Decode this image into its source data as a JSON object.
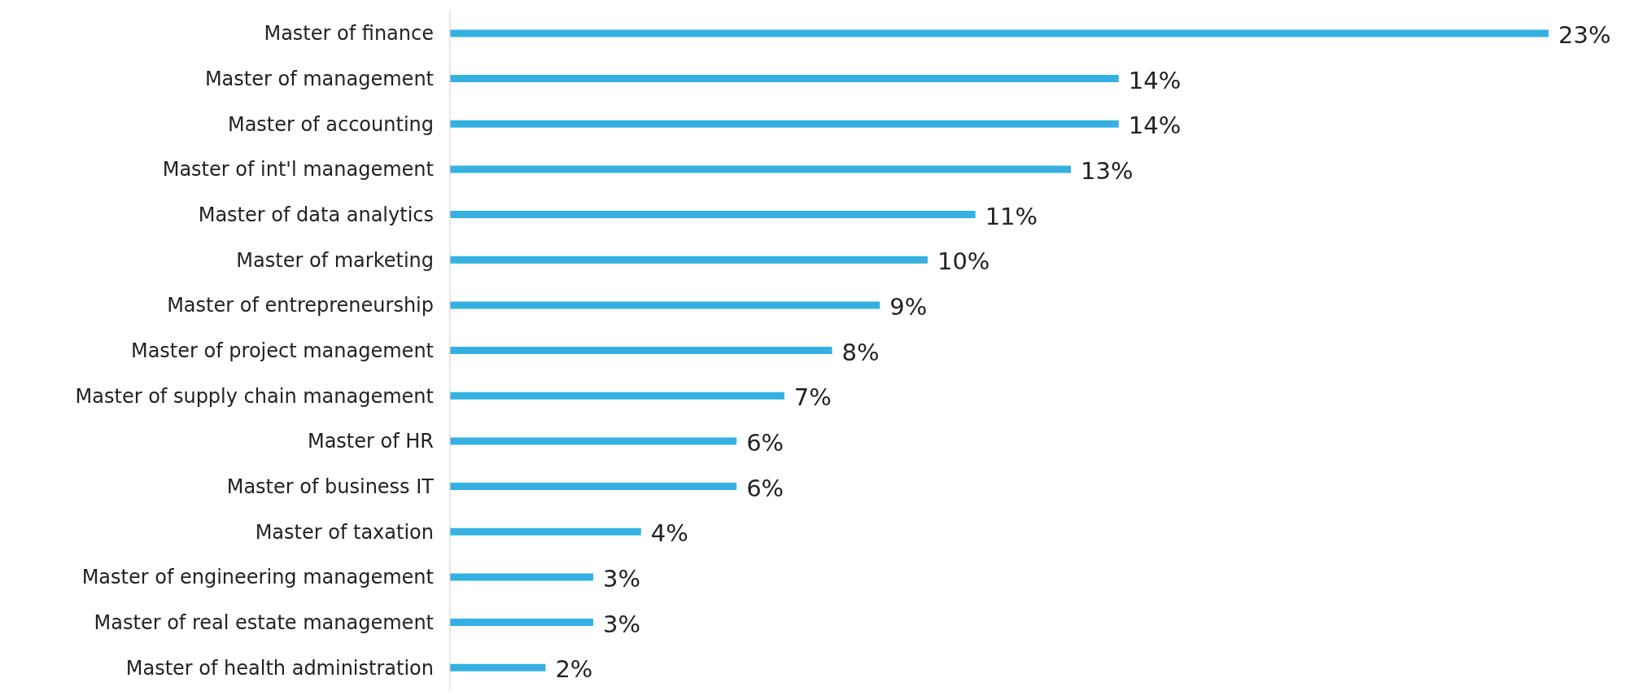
{
  "chart_data": {
    "type": "bar",
    "orientation": "horizontal",
    "categories": [
      "Master of finance",
      "Master of management",
      "Master of accounting",
      "Master of int'l management",
      "Master of data analytics",
      "Master of marketing",
      "Master of entrepreneurship",
      "Master of project management",
      "Master of supply chain management",
      "Master of HR",
      "Master of business IT",
      "Master of taxation",
      "Master of engineering management",
      "Master of real estate management",
      "Master of health administration"
    ],
    "values": [
      23,
      14,
      14,
      13,
      11,
      10,
      9,
      8,
      7,
      6,
      6,
      4,
      3,
      3,
      2
    ],
    "value_labels": [
      "23%",
      "14%",
      "14%",
      "13%",
      "11%",
      "10%",
      "9%",
      "8%",
      "7%",
      "6%",
      "6%",
      "4%",
      "3%",
      "3%",
      "2%"
    ],
    "color": "#35b0e3",
    "grid": false,
    "legend": false
  }
}
